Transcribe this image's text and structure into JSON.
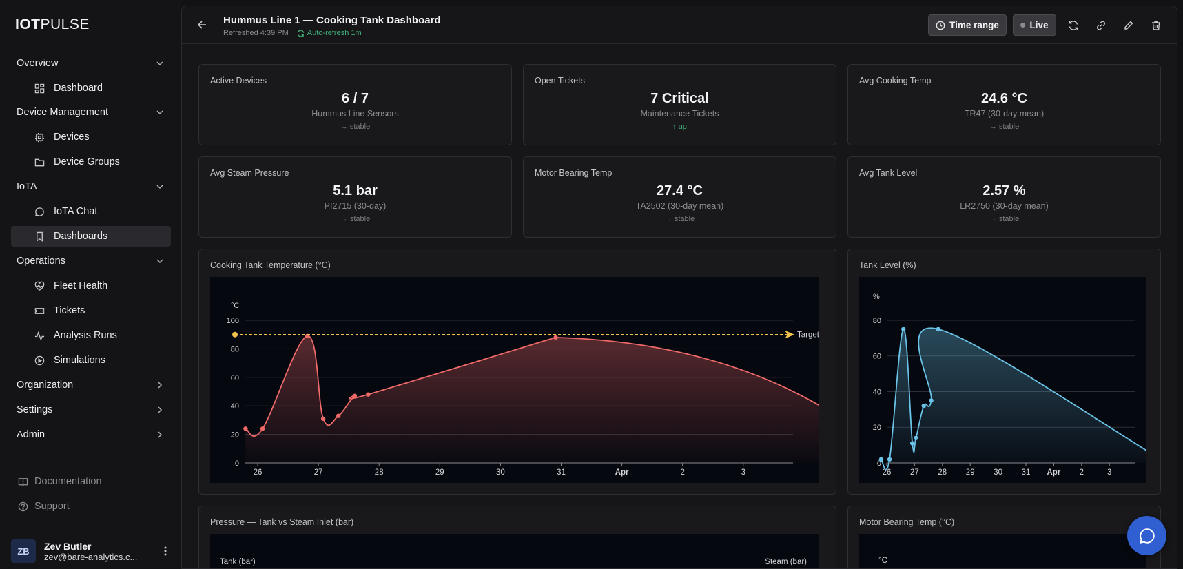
{
  "app": {
    "logo_bold": "IOT",
    "logo_light": "PULSE"
  },
  "sidebar": {
    "sections": [
      {
        "label": "Overview"
      },
      {
        "label": "Device Management"
      },
      {
        "label": "IoTA"
      },
      {
        "label": "Operations"
      },
      {
        "label": "Organization"
      },
      {
        "label": "Settings"
      },
      {
        "label": "Admin"
      }
    ],
    "items": [
      {
        "label": "Dashboard",
        "icon": "dashboard-icon"
      },
      {
        "label": "Devices",
        "icon": "chip-icon"
      },
      {
        "label": "Device Groups",
        "icon": "folder-icon"
      },
      {
        "label": "IoTA Chat",
        "icon": "chat-bubble-icon"
      },
      {
        "label": "Dashboards",
        "icon": "bookmark-icon",
        "active": true
      },
      {
        "label": "Fleet Health",
        "icon": "heart-pulse-icon"
      },
      {
        "label": "Tickets",
        "icon": "ticket-icon"
      },
      {
        "label": "Analysis Runs",
        "icon": "activity-icon"
      },
      {
        "label": "Simulations",
        "icon": "play-circle-icon"
      }
    ],
    "footer": [
      {
        "label": "Documentation",
        "icon": "book-icon"
      },
      {
        "label": "Support",
        "icon": "help-circle-icon"
      }
    ],
    "user": {
      "initials": "ZB",
      "name": "Zev Butler",
      "email": "zev@bare-analytics.c..."
    }
  },
  "header": {
    "title": "Hummus Line 1 — Cooking Tank Dashboard",
    "refreshed": "Refreshed 4:39 PM",
    "auto_refresh": "Auto-refresh 1m",
    "time_range_label": "Time range",
    "live_label": "Live"
  },
  "kpis": [
    {
      "label": "Active Devices",
      "value": "6 / 7",
      "sub": "Hummus Line Sensors",
      "trend": "→ stable"
    },
    {
      "label": "Open Tickets",
      "value": "7 Critical",
      "sub": "Maintenance Tickets",
      "trend": "↑ up"
    },
    {
      "label": "Avg Cooking Temp",
      "value": "24.6 °C",
      "sub": "TR47 (30-day mean)",
      "trend": "→ stable"
    },
    {
      "label": "Avg Steam Pressure",
      "value": "5.1 bar",
      "sub": "PI2715 (30-day)",
      "trend": "→ stable"
    },
    {
      "label": "Motor Bearing Temp",
      "value": "27.4 °C",
      "sub": "TA2502 (30-day mean)",
      "trend": "→ stable"
    },
    {
      "label": "Avg Tank Level",
      "value": "2.57 %",
      "sub": "LR2750 (30-day mean)",
      "trend": "→ stable"
    }
  ],
  "charts": {
    "temp_title": "Cooking Tank Temperature (°C)",
    "level_title": "Tank Level (%)",
    "pressure_title": "Pressure — Tank vs Steam Inlet (bar)",
    "pressure_left_label": "Tank (bar)",
    "pressure_right_label": "Steam (bar)",
    "motor_title": "Motor Bearing Temp (°C)",
    "motor_unit": "°C"
  },
  "chart_data": [
    {
      "type": "area",
      "title": "Cooking Tank Temperature (°C)",
      "ylabel": "°C",
      "ylim": [
        0,
        100
      ],
      "yticks": [
        0,
        20,
        40,
        60,
        80,
        100
      ],
      "xticks": [
        "26",
        "27",
        "28",
        "29",
        "30",
        "31",
        "Apr",
        "2",
        "3"
      ],
      "series": [
        {
          "name": "Temperature",
          "color": "#f06a6a",
          "x": [
            -0.2,
            0.08,
            0.82,
            1.08,
            1.33,
            1.6,
            1.82,
            4.91
          ],
          "y": [
            24,
            24,
            89,
            31,
            33,
            47,
            48,
            88
          ],
          "x_end": 9.85,
          "y_end": 24
        }
      ],
      "target": {
        "label": "Target",
        "value": 90,
        "color": "#f2c14e"
      }
    },
    {
      "type": "area",
      "title": "Tank Level (%)",
      "ylabel": "%",
      "ylim": [
        0,
        85
      ],
      "yticks": [
        0,
        20,
        40,
        60,
        80
      ],
      "xticks": [
        "26",
        "27",
        "28",
        "29",
        "30",
        "31",
        "Apr",
        "2",
        "3"
      ],
      "series": [
        {
          "name": "Level",
          "color": "#6ac3e6",
          "x": [
            -0.2,
            0.1,
            0.6,
            0.92,
            1.05,
            1.33,
            1.6,
            1.85,
            9.85
          ],
          "y": [
            2,
            2,
            75,
            11,
            14,
            32,
            35,
            75,
            2
          ]
        }
      ]
    }
  ]
}
